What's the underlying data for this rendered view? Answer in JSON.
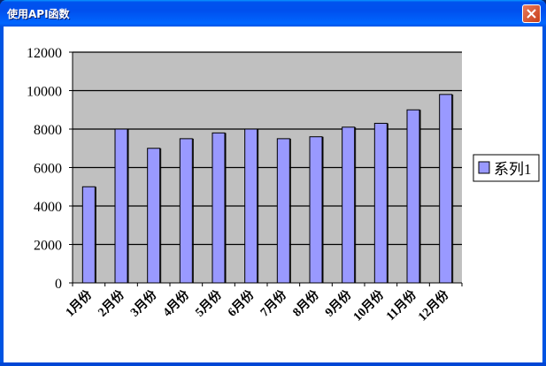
{
  "window": {
    "title": "使用API函数",
    "close_icon": "close-icon"
  },
  "colors": {
    "bar_fill": "#9999ff",
    "plot_background": "#c0c0c0",
    "titlebar": "#0054e3"
  },
  "chart_data": {
    "type": "bar",
    "categories": [
      "1月份",
      "2月份",
      "3月份",
      "4月份",
      "5月份",
      "6月份",
      "7月份",
      "8月份",
      "9月份",
      "10月份",
      "11月份",
      "12月份"
    ],
    "series": [
      {
        "name": "系列1",
        "values": [
          5000,
          8000,
          7000,
          7500,
          7800,
          8000,
          7500,
          7600,
          8100,
          8300,
          9000,
          9800
        ]
      }
    ],
    "yticks": [
      "0",
      "2000",
      "4000",
      "6000",
      "8000",
      "10000",
      "12000"
    ],
    "ylim": [
      0,
      12000
    ],
    "grid": true,
    "legend": "right"
  }
}
